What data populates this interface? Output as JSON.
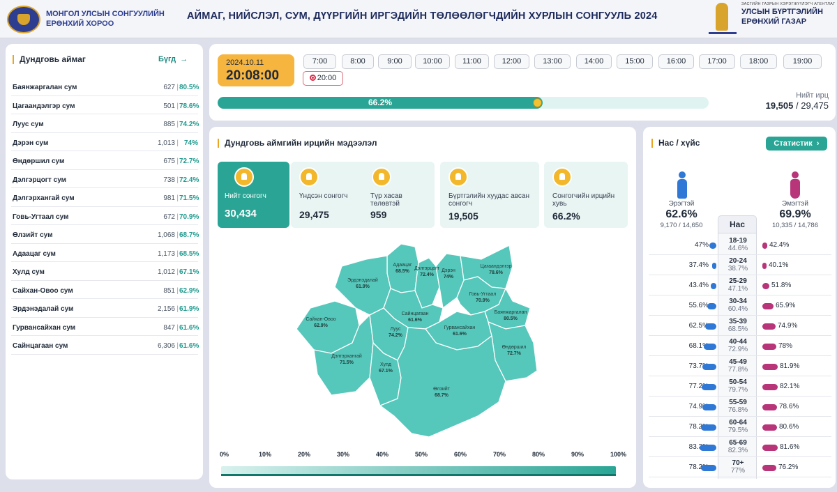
{
  "header": {
    "org_left": [
      "МОНГОЛ УЛСЫН СОНГУУЛИЙН",
      "ЕРӨНХИЙ ХОРОО"
    ],
    "title": "АЙМАГ, НИЙСЛЭЛ, СУМ, ДҮҮРГИЙН ИРГЭДИЙН ТӨЛӨӨЛӨГЧДИЙН ХУРЛЫН СОНГУУЛЬ 2024",
    "org_right_small": "ЗАСГИЙН ГАЗРЫН ХЭРЭГЖҮҮЛЭГЧ АГЕНТЛАГ",
    "org_right": [
      "УЛСЫН БҮРТГЭЛИЙН",
      "ЕРӨНХИЙ ГАЗАР"
    ]
  },
  "sidebar": {
    "title": "Дундговь аймаг",
    "more_label": "Бүгд",
    "more_icon": "arrow-right-icon",
    "items": [
      {
        "name": "Баянжаргалан сум",
        "count": "627",
        "pct": "80.5%"
      },
      {
        "name": "Цагаандэлгэр сум",
        "count": "501",
        "pct": "78.6%"
      },
      {
        "name": "Луус сум",
        "count": "885",
        "pct": "74.2%"
      },
      {
        "name": "Дэрэн сум",
        "count": "1,013",
        "pct": "74%"
      },
      {
        "name": "Өндөршил сум",
        "count": "675",
        "pct": "72.7%"
      },
      {
        "name": "Дэлгэрцогт сум",
        "count": "738",
        "pct": "72.4%"
      },
      {
        "name": "Дэлгэрхангай сум",
        "count": "981",
        "pct": "71.5%"
      },
      {
        "name": "Говь-Угтаал сум",
        "count": "672",
        "pct": "70.9%"
      },
      {
        "name": "Өлзийт сум",
        "count": "1,068",
        "pct": "68.7%"
      },
      {
        "name": "Адаацаг сум",
        "count": "1,173",
        "pct": "68.5%"
      },
      {
        "name": "Хулд сум",
        "count": "1,012",
        "pct": "67.1%"
      },
      {
        "name": "Сайхан-Овоо сум",
        "count": "851",
        "pct": "62.9%"
      },
      {
        "name": "Эрдэнэдалай сум",
        "count": "2,156",
        "pct": "61.9%"
      },
      {
        "name": "Гурвансайхан сум",
        "count": "847",
        "pct": "61.6%"
      },
      {
        "name": "Сайнцагаан сум",
        "count": "6,306",
        "pct": "61.6%"
      }
    ]
  },
  "timeline": {
    "date": "2024.10.11",
    "time": "20:08:00",
    "hours": [
      "7:00",
      "8:00",
      "9:00",
      "10:00",
      "11:00",
      "12:00",
      "13:00",
      "14:00",
      "15:00",
      "16:00",
      "17:00",
      "18:00",
      "19:00"
    ],
    "active_hour": "20:00",
    "progress_label": "66.2%",
    "progress_value": 0.662,
    "total_label": "Нийт ирц",
    "total_current": "19,505",
    "total_of": "/ 29,475"
  },
  "info": {
    "title": "Дундговь аймгийн ирцийн мэдээлэл",
    "cards": [
      {
        "label": "Нийт сонгогч",
        "value": "30,434"
      },
      {
        "label": "Үндсэн сонгогч",
        "value": "29,475"
      },
      {
        "label": "Түр хасав төлөвтэй",
        "value": "959"
      },
      {
        "label": "Бүртгэлийн хуудас авсан сонгогч",
        "value": "19,505"
      },
      {
        "label": "Сонгогчийн ирцийн хувь",
        "value": "66.2%"
      }
    ],
    "map_labels": [
      {
        "name": "Адаацаг",
        "pct": "68.5%"
      },
      {
        "name": "Дэлгэрцогт",
        "pct": "72.4%"
      },
      {
        "name": "Дэрэн",
        "pct": "74%"
      },
      {
        "name": "Цагаандэлгэр",
        "pct": "78.6%"
      },
      {
        "name": "Эрдэнэдалай",
        "pct": "61.9%"
      },
      {
        "name": "Говь-Угтаал",
        "pct": "70.9%"
      },
      {
        "name": "Баянжаргалан",
        "pct": "80.5%"
      },
      {
        "name": "Сайнцагаан",
        "pct": "61.6%"
      },
      {
        "name": "Сайхан-Овоо",
        "pct": "62.9%"
      },
      {
        "name": "Луус",
        "pct": "74.2%"
      },
      {
        "name": "Гурвансайхан",
        "pct": "61.6%"
      },
      {
        "name": "Өндөршил",
        "pct": "72.7%"
      },
      {
        "name": "Дэлгэрхангай",
        "pct": "71.5%"
      },
      {
        "name": "Хулд",
        "pct": "67.1%"
      },
      {
        "name": "Өлзийт",
        "pct": "68.7%"
      }
    ],
    "scale": [
      "0%",
      "10%",
      "20%",
      "30%",
      "40%",
      "50%",
      "60%",
      "70%",
      "80%",
      "90%",
      "100%"
    ]
  },
  "age_gender": {
    "title": "Нас / хүйс",
    "button": "Статистик",
    "button_icon": "chevron-right-icon",
    "male": {
      "label": "Эрэгтэй",
      "pct": "62.6%",
      "count": "9,170 / 14,650"
    },
    "female": {
      "label": "Эмэгтэй",
      "pct": "69.9%",
      "count": "10,335 / 14,786"
    },
    "age_header": "Нас",
    "colors": {
      "male": "#2f78d6",
      "female": "#b8357a",
      "accent": "#2aa595"
    },
    "rows": [
      {
        "range": "18-19",
        "total": "44.6%",
        "male": "47%",
        "female": "42.4%",
        "male_v": 0.47,
        "female_v": 0.424
      },
      {
        "range": "20-24",
        "total": "38.7%",
        "male": "37.4%",
        "female": "40.1%",
        "male_v": 0.374,
        "female_v": 0.401
      },
      {
        "range": "25-29",
        "total": "47.1%",
        "male": "43.4%",
        "female": "51.8%",
        "male_v": 0.434,
        "female_v": 0.518
      },
      {
        "range": "30-34",
        "total": "60.4%",
        "male": "55.6%",
        "female": "65.9%",
        "male_v": 0.556,
        "female_v": 0.659
      },
      {
        "range": "35-39",
        "total": "68.5%",
        "male": "62.5%",
        "female": "74.9%",
        "male_v": 0.625,
        "female_v": 0.749
      },
      {
        "range": "40-44",
        "total": "72.9%",
        "male": "68.1%",
        "female": "78%",
        "male_v": 0.681,
        "female_v": 0.78
      },
      {
        "range": "45-49",
        "total": "77.8%",
        "male": "73.7%",
        "female": "81.9%",
        "male_v": 0.737,
        "female_v": 0.819
      },
      {
        "range": "50-54",
        "total": "79.7%",
        "male": "77.2%",
        "female": "82.1%",
        "male_v": 0.772,
        "female_v": 0.821
      },
      {
        "range": "55-59",
        "total": "76.8%",
        "male": "74.9%",
        "female": "78.6%",
        "male_v": 0.749,
        "female_v": 0.786
      },
      {
        "range": "60-64",
        "total": "79.5%",
        "male": "78.2%",
        "female": "80.6%",
        "male_v": 0.782,
        "female_v": 0.806
      },
      {
        "range": "65-69",
        "total": "82.3%",
        "male": "83.3%",
        "female": "81.6%",
        "male_v": 0.833,
        "female_v": 0.816
      },
      {
        "range": "70+",
        "total": "77%",
        "male": "78.2%",
        "female": "76.2%",
        "male_v": 0.782,
        "female_v": 0.762
      }
    ]
  }
}
